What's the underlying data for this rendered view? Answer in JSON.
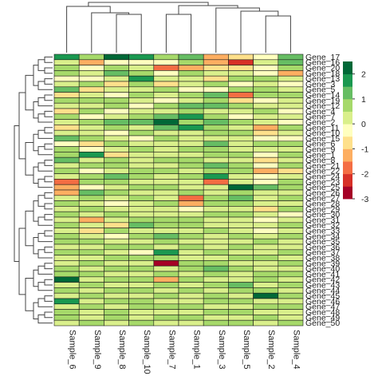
{
  "chart_data": {
    "type": "heatmap",
    "columns": [
      "Sample_6",
      "Sample_9",
      "Sample_8",
      "Sample_10",
      "Sample_7",
      "Sample_1",
      "Sample_3",
      "Sample_5",
      "Sample_2",
      "Sample_4"
    ],
    "rows": [
      "Gene_17",
      "Gene_16",
      "Gene_20",
      "Gene_18",
      "Gene_13",
      "Gene_3",
      "Gene_5",
      "Gene_14",
      "Gene_19",
      "Gene_12",
      "Gene_4",
      "Gene_7",
      "Gene_2",
      "Gene_11",
      "Gene_10",
      "Gene_15",
      "Gene_6",
      "Gene_9",
      "Gene_1",
      "Gene_8",
      "Gene_21",
      "Gene_22",
      "Gene_24",
      "Gene_23",
      "Gene_25",
      "Gene_26",
      "Gene_27",
      "Gene_28",
      "Gene_29",
      "Gene_30",
      "Gene_31",
      "Gene_32",
      "Gene_33",
      "Gene_34",
      "Gene_35",
      "Gene_36",
      "Gene_37",
      "Gene_38",
      "Gene_39",
      "Gene_40",
      "Gene_41",
      "Gene_42",
      "Gene_43",
      "Gene_44",
      "Gene_45",
      "Gene_46",
      "Gene_47",
      "Gene_48",
      "Gene_49",
      "Gene_50"
    ],
    "values": [
      [
        1.5,
        0.5,
        2.5,
        1.5,
        0.8,
        1.2,
        -1.2,
        -1.0,
        -0.5,
        1.2
      ],
      [
        0.2,
        -1.3,
        -0.5,
        -0.2,
        -0.5,
        0.8,
        -1.5,
        -2.5,
        0.3,
        1.0
      ],
      [
        0.5,
        -0.5,
        0.8,
        0.3,
        -1.7,
        -1.2,
        -0.8,
        -0.6,
        -0.3,
        0.5
      ],
      [
        0.8,
        0.3,
        1.0,
        0.5,
        -0.3,
        0.5,
        0.2,
        0.0,
        -0.5,
        -1.2
      ],
      [
        -0.5,
        -0.2,
        0.3,
        1.5,
        0.2,
        0.0,
        -0.7,
        0.5,
        0.8,
        0.3
      ],
      [
        0.3,
        0.5,
        -0.6,
        0.8,
        -0.8,
        0.4,
        0.8,
        -0.4,
        0.2,
        -0.3
      ],
      [
        1.0,
        -0.6,
        0.3,
        0.2,
        0.6,
        -0.5,
        -0.2,
        0.7,
        0.5,
        0.0
      ],
      [
        -1.0,
        0.2,
        -0.3,
        0.5,
        0.4,
        0.8,
        1.2,
        -1.8,
        0.6,
        0.6
      ],
      [
        0.6,
        0.8,
        0.5,
        0.3,
        -0.4,
        0.2,
        0.5,
        -0.6,
        -0.2,
        0.2
      ],
      [
        0.3,
        0.2,
        0.6,
        -0.5,
        0.5,
        1.0,
        1.4,
        0.8,
        0.3,
        0.0
      ],
      [
        -0.6,
        0.5,
        -0.5,
        0.2,
        0.3,
        0.6,
        0.2,
        0.4,
        0.5,
        -0.5
      ],
      [
        0.7,
        -0.3,
        0.2,
        0.8,
        1.2,
        1.5,
        0.6,
        -0.3,
        0.3,
        0.2
      ],
      [
        0.2,
        0.6,
        1.0,
        1.3,
        2.3,
        0.8,
        1.0,
        0.5,
        0.2,
        -0.4
      ],
      [
        -0.8,
        0.3,
        0.5,
        0.2,
        1.0,
        1.8,
        0.6,
        0.2,
        -1.4,
        0.5
      ],
      [
        0.4,
        0.0,
        -0.4,
        0.6,
        0.3,
        0.2,
        0.8,
        0.6,
        -1.0,
        0.3
      ],
      [
        1.2,
        0.5,
        0.3,
        -0.2,
        0.5,
        0.0,
        0.3,
        0.2,
        -0.5,
        -0.2
      ],
      [
        -0.3,
        -1.0,
        0.6,
        0.4,
        0.2,
        0.4,
        1.0,
        0.4,
        0.5,
        0.6
      ],
      [
        0.5,
        -0.5,
        0.2,
        0.6,
        0.0,
        0.6,
        0.5,
        0.3,
        0.0,
        0.2
      ],
      [
        0.6,
        1.8,
        -0.6,
        0.3,
        0.2,
        0.3,
        0.8,
        0.5,
        -0.3,
        0.5
      ],
      [
        1.0,
        0.2,
        0.5,
        0.0,
        0.8,
        0.5,
        0.4,
        0.2,
        -0.8,
        0.3
      ],
      [
        0.3,
        0.5,
        0.8,
        0.4,
        0.3,
        0.8,
        1.1,
        0.6,
        -0.5,
        0.8
      ],
      [
        0.8,
        -0.3,
        0.2,
        0.6,
        0.6,
        0.2,
        0.5,
        0.8,
        -1.2,
        -0.6
      ],
      [
        0.2,
        0.8,
        1.0,
        0.5,
        0.4,
        0.6,
        1.5,
        0.4,
        -0.2,
        0.3
      ],
      [
        -1.8,
        0.5,
        0.6,
        0.2,
        0.2,
        0.4,
        -1.7,
        0.3,
        -0.4,
        0.5
      ],
      [
        -1.5,
        -0.5,
        0.3,
        0.6,
        0.5,
        0.2,
        0.4,
        2.5,
        1.0,
        0.6
      ],
      [
        -1.2,
        1.0,
        0.5,
        0.2,
        0.3,
        0.6,
        0.2,
        0.8,
        0.4,
        0.3
      ],
      [
        0.4,
        0.6,
        0.2,
        0.5,
        0.2,
        -1.8,
        0.5,
        1.2,
        0.2,
        0.8
      ],
      [
        0.6,
        0.2,
        -0.5,
        0.3,
        0.5,
        -1.2,
        0.6,
        0.5,
        0.3,
        0.2
      ],
      [
        0.2,
        0.5,
        0.3,
        0.2,
        0.4,
        -0.5,
        0.3,
        0.2,
        -0.6,
        0.5
      ],
      [
        0.5,
        0.3,
        0.6,
        0.4,
        0.2,
        0.3,
        0.5,
        0.6,
        0.2,
        -0.3
      ],
      [
        0.3,
        -1.2,
        0.2,
        0.5,
        0.8,
        0.6,
        0.3,
        0.2,
        -0.5,
        0.2
      ],
      [
        0.6,
        0.4,
        -0.6,
        1.0,
        0.5,
        0.8,
        0.2,
        0.4,
        0.3,
        0.6
      ],
      [
        0.2,
        -0.8,
        0.5,
        0.3,
        0.4,
        0.2,
        0.6,
        0.2,
        -0.4,
        0.3
      ],
      [
        0.5,
        0.3,
        -0.5,
        0.5,
        1.2,
        0.5,
        0.3,
        0.6,
        0.2,
        0.5
      ],
      [
        0.8,
        0.6,
        0.2,
        0.3,
        0.6,
        0.3,
        0.4,
        0.2,
        0.8,
        0.2
      ],
      [
        0.3,
        0.2,
        0.6,
        0.5,
        0.2,
        0.8,
        0.2,
        0.6,
        0.3,
        0.4
      ],
      [
        0.6,
        0.5,
        0.3,
        -0.3,
        1.6,
        0.4,
        0.5,
        0.3,
        0.2,
        0.6
      ],
      [
        0.4,
        0.3,
        0.5,
        0.6,
        0.8,
        0.2,
        0.3,
        0.5,
        0.6,
        0.3
      ],
      [
        0.2,
        0.6,
        0.2,
        0.3,
        -2.8,
        0.5,
        0.6,
        0.2,
        0.4,
        0.5
      ],
      [
        0.5,
        0.2,
        0.6,
        0.5,
        0.3,
        0.6,
        1.2,
        0.6,
        0.3,
        0.2
      ],
      [
        0.8,
        0.5,
        0.3,
        0.2,
        0.6,
        0.3,
        0.5,
        0.4,
        0.6,
        0.6
      ],
      [
        2.0,
        0.3,
        0.5,
        0.6,
        -1.2,
        0.5,
        0.2,
        0.3,
        0.5,
        0.3
      ],
      [
        0.3,
        0.6,
        0.2,
        0.3,
        0.5,
        0.2,
        0.6,
        1.0,
        0.2,
        0.5
      ],
      [
        0.6,
        0.2,
        0.5,
        0.6,
        0.3,
        0.6,
        0.3,
        0.5,
        0.6,
        0.2
      ],
      [
        0.4,
        0.5,
        0.3,
        0.2,
        0.6,
        0.4,
        0.5,
        0.2,
        2.5,
        0.6
      ],
      [
        1.5,
        0.3,
        0.6,
        0.5,
        0.2,
        0.3,
        0.6,
        0.6,
        0.3,
        0.3
      ],
      [
        0.3,
        0.6,
        0.2,
        0.6,
        0.5,
        0.6,
        0.2,
        0.3,
        0.5,
        0.6
      ],
      [
        0.6,
        0.2,
        0.5,
        0.3,
        0.3,
        0.2,
        0.5,
        0.6,
        0.2,
        0.4
      ],
      [
        0.5,
        0.3,
        0.6,
        0.2,
        0.6,
        0.5,
        0.3,
        0.2,
        0.6,
        0.2
      ],
      [
        0.2,
        0.6,
        0.3,
        0.5,
        0.2,
        0.3,
        0.6,
        0.5,
        0.3,
        0.5
      ]
    ],
    "color_scale": {
      "min": -3,
      "max": 2.5,
      "ticks": [
        2,
        1,
        0,
        -1,
        -2,
        -3
      ],
      "colors": [
        "#A50026",
        "#D73027",
        "#F46D43",
        "#FDAE61",
        "#FEE08B",
        "#FFFFBF",
        "#D9EF8B",
        "#A6D96A",
        "#66BD63",
        "#1A9850",
        "#006837"
      ]
    },
    "legend_position": "right"
  }
}
